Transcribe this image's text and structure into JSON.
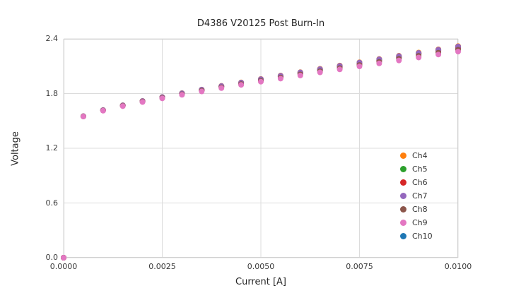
{
  "chart_data": {
    "type": "scatter",
    "title": "D4386 V20125 Post Burn-In",
    "xlabel": "Current [A]",
    "ylabel": "Voltage",
    "xlim": [
      0,
      0.01
    ],
    "ylim": [
      0,
      2.4
    ],
    "grid": true,
    "grid_color": "#dcdcdc",
    "plot_border_color": "#d0d0d0",
    "background": "#ffffff",
    "legend_position": "lower right",
    "marker_radius": 4,
    "xticks": {
      "values": [
        0,
        0.0025,
        0.005,
        0.0075,
        0.01
      ],
      "labels": [
        "0.0000",
        "0.0025",
        "0.0050",
        "0.0075",
        "0.0100"
      ]
    },
    "yticks": {
      "values": [
        0,
        0.6,
        1.2,
        1.8,
        2.4
      ],
      "labels": [
        "0.0",
        "0.6",
        "1.2",
        "1.8",
        "2.4"
      ]
    },
    "x": [
      0,
      0.0005,
      0.001,
      0.0015,
      0.002,
      0.0025,
      0.003,
      0.0035,
      0.004,
      0.0045,
      0.005,
      0.0055,
      0.006,
      0.0065,
      0.007,
      0.0075,
      0.008,
      0.0085,
      0.009,
      0.0095,
      0.01
    ],
    "series": [
      {
        "name": "Ch4",
        "color": "#ff7f0e",
        "y": [
          0,
          1.551,
          1.618,
          1.671,
          1.719,
          1.762,
          1.804,
          1.844,
          1.884,
          1.922,
          1.96,
          1.997,
          2.034,
          2.071,
          2.107,
          2.143,
          2.179,
          2.214,
          2.249,
          2.285,
          2.32
        ]
      },
      {
        "name": "Ch5",
        "color": "#2ca02c",
        "y": [
          0,
          1.551,
          1.617,
          1.67,
          1.717,
          1.76,
          1.802,
          1.841,
          1.881,
          1.918,
          1.956,
          1.993,
          2.029,
          2.066,
          2.101,
          2.137,
          2.173,
          2.207,
          2.242,
          2.277,
          2.312
        ]
      },
      {
        "name": "Ch6",
        "color": "#d62728",
        "y": [
          0,
          1.55,
          1.616,
          1.669,
          1.716,
          1.758,
          1.799,
          1.838,
          1.878,
          1.915,
          1.952,
          1.988,
          2.024,
          2.061,
          2.096,
          2.131,
          2.166,
          2.2,
          2.235,
          2.27,
          2.304
        ]
      },
      {
        "name": "Ch7",
        "color": "#9467bd",
        "y": [
          0,
          1.551,
          1.618,
          1.67,
          1.718,
          1.761,
          1.803,
          1.843,
          1.882,
          1.92,
          1.958,
          1.995,
          2.032,
          2.068,
          2.104,
          2.14,
          2.176,
          2.211,
          2.245,
          2.281,
          2.316
        ]
      },
      {
        "name": "Ch8",
        "color": "#8c564b",
        "y": [
          0,
          1.549,
          1.614,
          1.665,
          1.711,
          1.752,
          1.792,
          1.83,
          1.868,
          1.904,
          1.94,
          1.975,
          2.01,
          2.045,
          2.079,
          2.113,
          2.147,
          2.18,
          2.213,
          2.247,
          2.28
        ]
      },
      {
        "name": "Ch9",
        "color": "#e377c2",
        "y": [
          0,
          1.548,
          1.612,
          1.662,
          1.707,
          1.747,
          1.786,
          1.823,
          1.86,
          1.895,
          1.93,
          1.964,
          1.998,
          2.032,
          2.065,
          2.098,
          2.131,
          2.163,
          2.195,
          2.228,
          2.26
        ]
      },
      {
        "name": "Ch10",
        "color": "#1f77b4",
        "y": [
          0,
          1.55,
          1.616,
          1.668,
          1.715,
          1.757,
          1.798,
          1.837,
          1.876,
          1.913,
          1.95,
          1.986,
          2.022,
          2.058,
          2.093,
          2.128,
          2.163,
          2.197,
          2.231,
          2.266,
          2.3
        ]
      }
    ],
    "draw_order": [
      6,
      0,
      1,
      2,
      3,
      4,
      5
    ]
  }
}
